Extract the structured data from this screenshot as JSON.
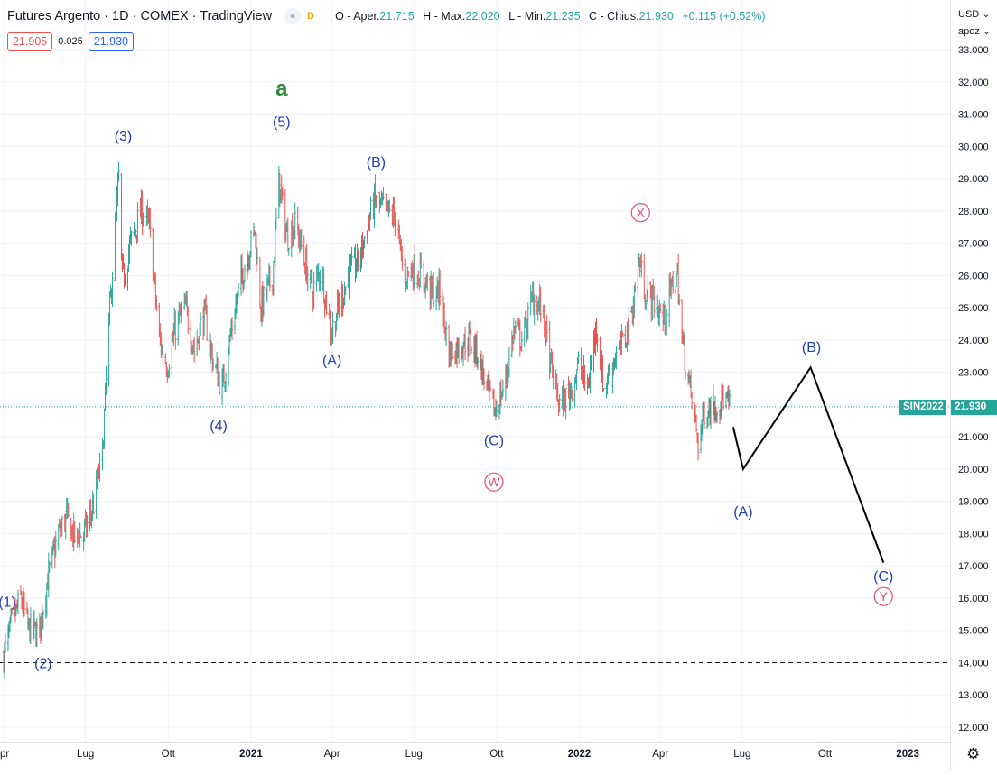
{
  "header": {
    "symbol_title": "Futures Argento · 1D · COMEX · TradingView",
    "badge_dot": "●",
    "badge_d": "D",
    "ohlc": {
      "o_label": "O - Aper.",
      "o_val": "21.715",
      "h_label": "H - Max.",
      "h_val": "22.020",
      "l_label": "L - Min.",
      "l_val": "21.235",
      "c_label": "C - Chius.",
      "c_val": "21.930",
      "change": "+0.115 (+0.52%)"
    },
    "bid": "21.905",
    "spread": "0.025",
    "ask": "21.930"
  },
  "price_axis": {
    "currency": "USD ⌄",
    "unit": "apoz ⌄"
  },
  "last_price_tag": {
    "symbol": "SIN2022",
    "value": "21.930"
  },
  "colors": {
    "up": "#26a69a",
    "down": "#ef5350",
    "wave_label": "#1e3fb8",
    "circle_label": "#e84a78",
    "degree_label": "#2e8b3a",
    "projection": "#000000"
  },
  "chart_data": {
    "type": "candlestick",
    "title": "Futures Argento · 1D · COMEX",
    "x_range": [
      "2020-04-01",
      "2023-02-15"
    ],
    "ylim": [
      11.7,
      33.6
    ],
    "y_ticks": [
      "12.000",
      "13.000",
      "14.000",
      "15.000",
      "16.000",
      "17.000",
      "18.000",
      "19.000",
      "20.000",
      "21.000",
      "22.000",
      "23.000",
      "24.000",
      "25.000",
      "26.000",
      "27.000",
      "28.000",
      "29.000",
      "30.000",
      "31.000",
      "32.000",
      "33.000"
    ],
    "x_ticks": [
      {
        "label": "pr",
        "date": "2020-04-01"
      },
      {
        "label": "Lug",
        "date": "2020-07-01"
      },
      {
        "label": "Ott",
        "date": "2020-10-01"
      },
      {
        "label": "2021",
        "date": "2021-01-01"
      },
      {
        "label": "Apr",
        "date": "2021-04-01"
      },
      {
        "label": "Lug",
        "date": "2021-07-01"
      },
      {
        "label": "Ott",
        "date": "2021-10-01"
      },
      {
        "label": "2022",
        "date": "2022-01-01"
      },
      {
        "label": "Apr",
        "date": "2022-04-01"
      },
      {
        "label": "Lug",
        "date": "2022-07-01"
      },
      {
        "label": "Ott",
        "date": "2022-10-01"
      },
      {
        "label": "2023",
        "date": "2023-01-01"
      }
    ],
    "price_path": [
      [
        "2020-04-01",
        14.2
      ],
      [
        "2020-04-10",
        15.2
      ],
      [
        "2020-04-20",
        16.0
      ],
      [
        "2020-04-28",
        15.1
      ],
      [
        "2020-05-10",
        14.9
      ],
      [
        "2020-05-20",
        16.6
      ],
      [
        "2020-06-01",
        18.0
      ],
      [
        "2020-06-10",
        18.5
      ],
      [
        "2020-06-20",
        17.8
      ],
      [
        "2020-07-01",
        18.1
      ],
      [
        "2020-07-10",
        18.9
      ],
      [
        "2020-07-20",
        20.5
      ],
      [
        "2020-07-27",
        24.5
      ],
      [
        "2020-08-07",
        29.0
      ],
      [
        "2020-08-11",
        25.8
      ],
      [
        "2020-08-20",
        27.0
      ],
      [
        "2020-09-01",
        28.0
      ],
      [
        "2020-09-10",
        27.5
      ],
      [
        "2020-09-21",
        24.0
      ],
      [
        "2020-09-30",
        23.2
      ],
      [
        "2020-10-10",
        24.5
      ],
      [
        "2020-10-20",
        25.0
      ],
      [
        "2020-10-30",
        23.7
      ],
      [
        "2020-11-10",
        24.8
      ],
      [
        "2020-11-20",
        23.3
      ],
      [
        "2020-11-30",
        22.5
      ],
      [
        "2020-12-10",
        24.3
      ],
      [
        "2020-12-20",
        25.8
      ],
      [
        "2021-01-05",
        27.4
      ],
      [
        "2021-01-12",
        25.0
      ],
      [
        "2021-01-25",
        26.0
      ],
      [
        "2021-02-01",
        28.9
      ],
      [
        "2021-02-10",
        27.2
      ],
      [
        "2021-02-20",
        27.6
      ],
      [
        "2021-03-01",
        26.5
      ],
      [
        "2021-03-10",
        25.5
      ],
      [
        "2021-03-20",
        26.2
      ],
      [
        "2021-03-31",
        24.2
      ],
      [
        "2021-04-10",
        25.2
      ],
      [
        "2021-04-20",
        26.0
      ],
      [
        "2021-05-01",
        26.5
      ],
      [
        "2021-05-10",
        27.5
      ],
      [
        "2021-05-18",
        28.3
      ],
      [
        "2021-05-31",
        28.0
      ],
      [
        "2021-06-10",
        27.8
      ],
      [
        "2021-06-20",
        26.0
      ],
      [
        "2021-06-30",
        26.2
      ],
      [
        "2021-07-10",
        26.0
      ],
      [
        "2021-07-20",
        25.5
      ],
      [
        "2021-07-30",
        25.5
      ],
      [
        "2021-08-09",
        23.6
      ],
      [
        "2021-08-20",
        23.8
      ],
      [
        "2021-08-31",
        24.0
      ],
      [
        "2021-09-10",
        23.6
      ],
      [
        "2021-09-20",
        22.5
      ],
      [
        "2021-09-29",
        21.8
      ],
      [
        "2021-10-10",
        22.6
      ],
      [
        "2021-10-20",
        24.3
      ],
      [
        "2021-10-30",
        24.0
      ],
      [
        "2021-11-10",
        25.3
      ],
      [
        "2021-11-20",
        25.0
      ],
      [
        "2021-11-30",
        23.2
      ],
      [
        "2021-12-10",
        22.0
      ],
      [
        "2021-12-20",
        22.3
      ],
      [
        "2021-12-31",
        23.2
      ],
      [
        "2022-01-10",
        22.5
      ],
      [
        "2022-01-20",
        24.5
      ],
      [
        "2022-01-28",
        22.5
      ],
      [
        "2022-02-10",
        23.5
      ],
      [
        "2022-02-20",
        24.0
      ],
      [
        "2022-03-01",
        25.0
      ],
      [
        "2022-03-08",
        26.5
      ],
      [
        "2022-03-15",
        25.5
      ],
      [
        "2022-03-25",
        25.2
      ],
      [
        "2022-04-05",
        24.6
      ],
      [
        "2022-04-15",
        25.8
      ],
      [
        "2022-04-20",
        26.0
      ],
      [
        "2022-04-25",
        24.0
      ],
      [
        "2022-05-05",
        22.3
      ],
      [
        "2022-05-13",
        20.8
      ],
      [
        "2022-05-20",
        21.8
      ],
      [
        "2022-05-31",
        22.0
      ],
      [
        "2022-06-10",
        22.2
      ],
      [
        "2022-06-17",
        21.9
      ]
    ],
    "series": [
      {
        "name": "wave_labels",
        "points": [
          {
            "label": "(1)",
            "x": "2020-04-05",
            "y": 15.9
          },
          {
            "label": "(2)",
            "x": "2020-05-15",
            "y": 14.0
          },
          {
            "label": "(3)",
            "x": "2020-08-12",
            "y": 30.35
          },
          {
            "label": "(4)",
            "x": "2020-11-26",
            "y": 21.37
          },
          {
            "label": "(5)",
            "x": "2021-02-04",
            "y": 30.77
          },
          {
            "label": "a",
            "x": "2021-02-04",
            "y": 31.8
          },
          {
            "label": "(A)",
            "x": "2021-04-01",
            "y": 23.4
          },
          {
            "label": "(B)",
            "x": "2021-05-20",
            "y": 29.53
          },
          {
            "label": "(C)",
            "x": "2021-09-28",
            "y": 20.9
          },
          {
            "label": "W",
            "x": "2021-09-28",
            "y": 19.6
          },
          {
            "label": "X",
            "x": "2022-03-10",
            "y": 27.95
          },
          {
            "label": "(A)",
            "x": "2022-07-02",
            "y": 18.7
          },
          {
            "label": "(B)",
            "x": "2022-09-16",
            "y": 23.8
          },
          {
            "label": "(C)",
            "x": "2022-12-05",
            "y": 16.7
          },
          {
            "label": "Y",
            "x": "2022-12-05",
            "y": 16.05
          }
        ]
      },
      {
        "name": "projection",
        "points": [
          {
            "x": "2022-06-21",
            "y": 21.3
          },
          {
            "x": "2022-07-02",
            "y": 20.0
          },
          {
            "x": "2022-09-15",
            "y": 23.15
          },
          {
            "x": "2022-12-05",
            "y": 17.1
          }
        ]
      }
    ],
    "horizontal_lines": [
      {
        "y": 21.93,
        "style": "dotted",
        "color": "#26a69a"
      },
      {
        "y": 14.0,
        "style": "dashed",
        "color": "#131722"
      }
    ],
    "grid": true
  }
}
